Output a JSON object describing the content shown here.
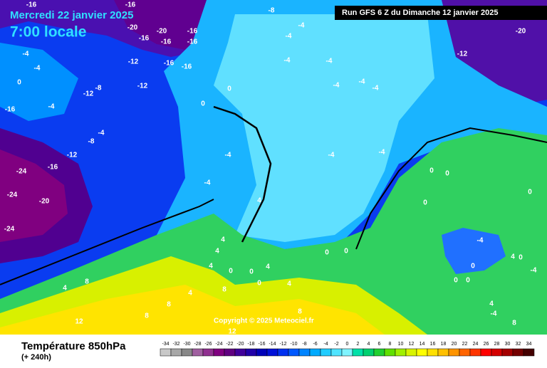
{
  "header": {
    "date": "Mercredi 22 janvier 2025",
    "time": "7:00 locale",
    "run": "Run GFS 6 Z du Dimanche 12 janvier 2025"
  },
  "copyright": "Copyright © 2025 Meteociel.fr",
  "footer": {
    "title": "Température 850hPa",
    "lead": "(+ 240h)"
  },
  "legend": {
    "values": [
      -34,
      -32,
      -30,
      -28,
      -26,
      -24,
      -22,
      -20,
      -18,
      -16,
      -14,
      -12,
      -10,
      -8,
      -6,
      -4,
      -2,
      0,
      2,
      4,
      6,
      8,
      10,
      12,
      14,
      16,
      18,
      20,
      22,
      24,
      26,
      28,
      30,
      32,
      34
    ],
    "colors": [
      "#c8c8c8",
      "#a8a8a8",
      "#888888",
      "#a060a0",
      "#903090",
      "#800080",
      "#600080",
      "#40009a",
      "#2000a8",
      "#0000b8",
      "#0010d8",
      "#0030f0",
      "#0058ff",
      "#0084ff",
      "#00aaff",
      "#20ccff",
      "#50e4ff",
      "#80f4ff",
      "#00e0a8",
      "#00d070",
      "#20d030",
      "#60e000",
      "#a0f000",
      "#d8f400",
      "#ffff00",
      "#ffe000",
      "#ffc000",
      "#ff9400",
      "#ff6400",
      "#ff3400",
      "#ff0000",
      "#d40000",
      "#a40000",
      "#740000",
      "#440000"
    ]
  },
  "contour_labels": [
    -16,
    -16,
    -8,
    -20,
    -20,
    -16,
    -16,
    -16,
    -16,
    -20,
    -4,
    -4,
    -12,
    -4,
    -4,
    -4,
    -12,
    -16,
    -16,
    -4,
    -12,
    -8,
    -12,
    -4,
    -4,
    -4,
    0,
    0,
    -4,
    -16,
    -4,
    -8,
    -12,
    -16,
    -24,
    -4,
    -4,
    -4,
    -4,
    0,
    0,
    0,
    0,
    -20,
    -24,
    -24,
    4,
    4,
    4,
    4,
    4,
    8,
    4,
    8,
    12,
    8,
    0,
    0,
    0,
    4,
    4,
    0,
    0,
    -4,
    0,
    0,
    -4,
    0,
    0,
    4,
    4,
    -4,
    8,
    8,
    12,
    8,
    0
  ]
}
